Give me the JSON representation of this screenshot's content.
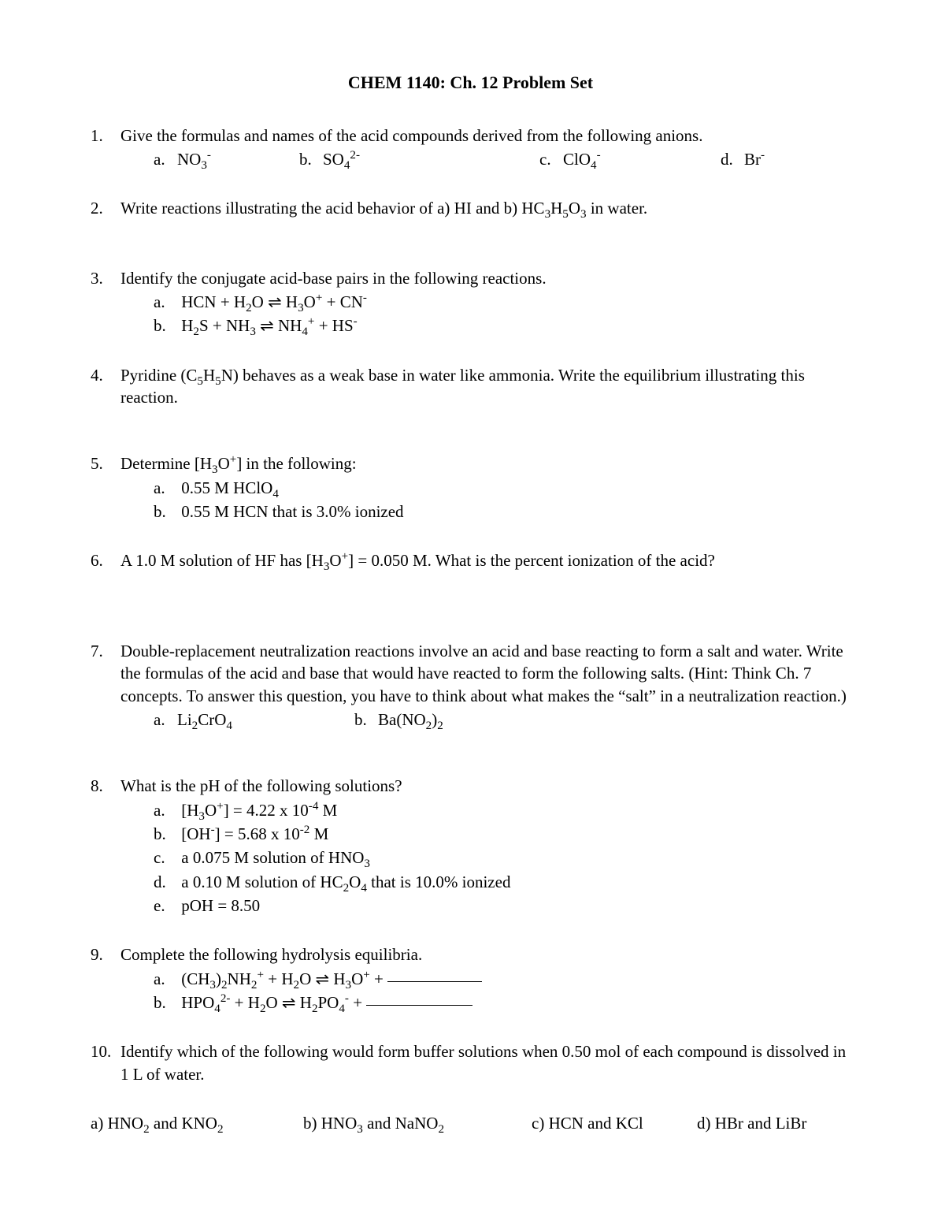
{
  "title": "CHEM 1140:  Ch. 12 Problem Set",
  "q1": {
    "num": "1.",
    "text_pre": "Give the formulas and names of the acid compounds derived from the following anions.",
    "a_label": "a.",
    "a_val": "NO<sub>3</sub><sup>-</sup>",
    "b_label": "b.",
    "b_val": "SO<sub>4</sub><sup>2-</sup>",
    "c_label": "c.",
    "c_val": "ClO<sub>4</sub><sup>-</sup>",
    "d_label": "d.",
    "d_val": "Br<sup>-</sup>"
  },
  "q2": {
    "num": "2.",
    "text": "Write reactions illustrating the acid behavior of a) HI and b) HC<sub>3</sub>H<sub>5</sub>O<sub>3</sub> in water."
  },
  "q3": {
    "num": "3.",
    "text": "Identify the conjugate acid-base pairs in the following reactions.",
    "a_label": "a.",
    "a_val": "HCN + H<sub>2</sub>O ⇌ H<sub>3</sub>O<sup>+</sup> + CN<sup>-</sup>",
    "b_label": "b.",
    "b_val": "H<sub>2</sub>S + NH<sub>3</sub> ⇌ NH<sub>4</sub><sup>+</sup> + HS<sup>-</sup>"
  },
  "q4": {
    "num": "4.",
    "text": "Pyridine (C<sub>5</sub>H<sub>5</sub>N) behaves as a weak base in water like ammonia.  Write the equilibrium illustrating this reaction."
  },
  "q5": {
    "num": "5.",
    "text": "Determine [H<sub>3</sub>O<sup>+</sup>] in the following:",
    "a_label": "a.",
    "a_val": "0.55 M HClO<sub>4</sub>",
    "b_label": "b.",
    "b_val": "0.55 M HCN that is 3.0% ionized"
  },
  "q6": {
    "num": "6.",
    "text": "A 1.0 M solution of HF has [H<sub>3</sub>O<sup>+</sup>] = 0.050 M.  What is the percent ionization of the acid?"
  },
  "q7": {
    "num": "7.",
    "text": "Double-replacement neutralization reactions involve an acid and base reacting to form a salt and water.  Write the formulas of the acid and base that would have reacted to form the following salts.  (Hint: Think Ch. 7 concepts.  To answer this question, you have to think about what makes the “salt” in a neutralization reaction.)",
    "a_label": "a.",
    "a_val": "Li<sub>2</sub>CrO<sub>4</sub>",
    "b_label": "b.",
    "b_val": "Ba(NO<sub>2</sub>)<sub>2</sub>"
  },
  "q8": {
    "num": "8.",
    "text": "What is the pH of the following solutions?",
    "a_label": "a.",
    "a_val": "[H<sub>3</sub>O<sup>+</sup>] = 4.22 x 10<sup>-4</sup> M",
    "b_label": "b.",
    "b_val": "[OH<sup>-</sup>] = 5.68 x 10<sup>-2</sup> M",
    "c_label": "c.",
    "c_val": "a 0.075 M solution of HNO<sub>3</sub>",
    "d_label": "d.",
    "d_val": " a 0.10 M solution of HC<sub>2</sub>O<sub>4</sub> that is 10.0% ionized",
    "e_label": "e.",
    "e_val": "pOH = 8.50"
  },
  "q9": {
    "num": "9.",
    "text": "Complete the following hydrolysis equilibria.",
    "a_label": "a.",
    "a_val": "(CH<sub>3</sub>)<sub>2</sub>NH<sub>2</sub><sup>+</sup> + H<sub>2</sub>O ⇌ H<sub>3</sub>O<sup>+</sup> + ",
    "b_label": "b.",
    "b_val": "HPO<sub>4</sub><sup>2-</sup> + H<sub>2</sub>O ⇌ H<sub>2</sub>PO<sub>4</sub><sup>-</sup> + "
  },
  "q10": {
    "num": "10.",
    "text": "Identify which of the following would form buffer solutions when 0.50 mol of each compound is dissolved in 1 L of water.",
    "a": "a) HNO<sub>2</sub> and KNO<sub>2</sub>",
    "b": "b) HNO<sub>3</sub> and NaNO<sub>2</sub>",
    "c": "c) HCN and KCl",
    "d": "d) HBr and LiBr"
  }
}
